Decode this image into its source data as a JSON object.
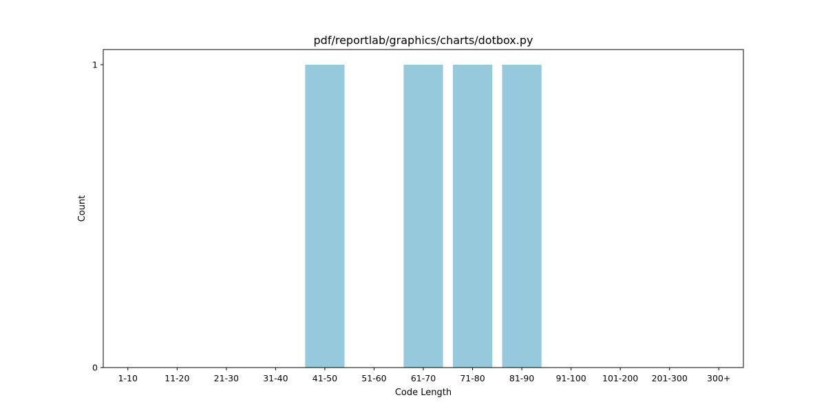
{
  "chart_data": {
    "type": "bar",
    "title": "pdf/reportlab/graphics/charts/dotbox.py",
    "xlabel": "Code Length",
    "ylabel": "Count",
    "categories": [
      "1-10",
      "11-20",
      "21-30",
      "31-40",
      "41-50",
      "51-60",
      "61-70",
      "71-80",
      "81-90",
      "91-100",
      "101-200",
      "201-300",
      "300+"
    ],
    "values": [
      0,
      0,
      0,
      0,
      1,
      0,
      1,
      1,
      1,
      0,
      0,
      0,
      0
    ],
    "ylim": [
      0,
      1.05
    ],
    "yticks": [
      0,
      1
    ],
    "bar_color": "#96c9dc",
    "grid": false
  }
}
